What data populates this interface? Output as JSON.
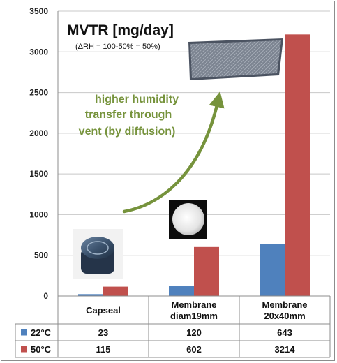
{
  "chart_data": {
    "type": "bar",
    "title": "MVTR [mg/day]",
    "subtitle": "(ΔRH = 100-50% = 50%)",
    "categories": [
      "Capseal",
      "Membrane diam19mm",
      "Membrane 20x40mm"
    ],
    "category_lines": [
      [
        "Capseal"
      ],
      [
        "Membrane",
        "diam19mm"
      ],
      [
        "Membrane",
        "20x40mm"
      ]
    ],
    "series": [
      {
        "name": "22°C",
        "color": "#4f81bd",
        "values": [
          23,
          120,
          643
        ],
        "labels": [
          "23",
          "120",
          "643"
        ]
      },
      {
        "name": "50°C",
        "color": "#c0504d",
        "values": [
          115,
          602,
          3214
        ],
        "labels": [
          "115",
          "602",
          "3214"
        ]
      }
    ],
    "ylim": [
      0,
      3500
    ],
    "yticks": [
      0,
      500,
      1000,
      1500,
      2000,
      2500,
      3000,
      3500
    ],
    "ytick_labels": [
      "0",
      "500",
      "1000",
      "1500",
      "2000",
      "2500",
      "3000",
      "3500"
    ],
    "xlabel": "",
    "ylabel": "",
    "grid": true,
    "legend": "data-table",
    "annotation": {
      "lines": [
        "higher humidity",
        "transfer through",
        "vent (by diffusion)"
      ],
      "color": "#76933c"
    },
    "images": [
      "capseal-photo",
      "round-membrane-photo",
      "rectangular-membrane-photo"
    ]
  }
}
